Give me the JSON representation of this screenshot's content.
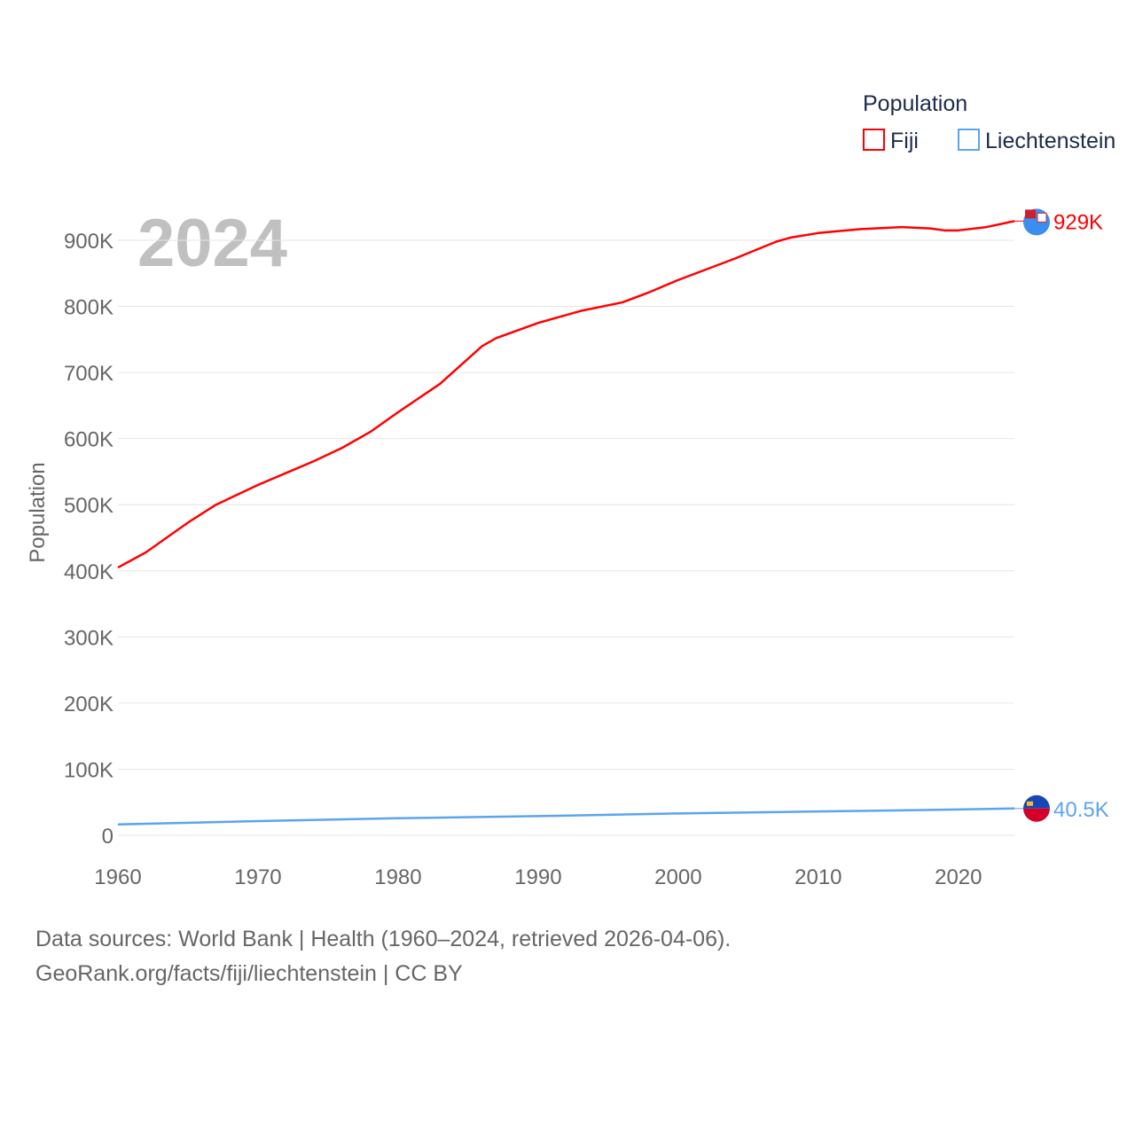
{
  "chart_data": {
    "type": "line",
    "title": "",
    "ylabel": "Population",
    "xlabel": "",
    "year_watermark": "2024",
    "legend": {
      "title": "Population",
      "position": "top-right"
    },
    "xlim": [
      1960,
      2024
    ],
    "ylim": [
      0,
      900000
    ],
    "x_ticks": [
      1960,
      1970,
      1980,
      1990,
      2000,
      2010,
      2020
    ],
    "y_ticks": [
      {
        "v": 0,
        "label": "0"
      },
      {
        "v": 100000,
        "label": "100K"
      },
      {
        "v": 200000,
        "label": "200K"
      },
      {
        "v": 300000,
        "label": "300K"
      },
      {
        "v": 400000,
        "label": "400K"
      },
      {
        "v": 500000,
        "label": "500K"
      },
      {
        "v": 600000,
        "label": "600K"
      },
      {
        "v": 700000,
        "label": "700K"
      },
      {
        "v": 800000,
        "label": "800K"
      },
      {
        "v": 900000,
        "label": "900K"
      }
    ],
    "grid": true,
    "series": [
      {
        "name": "Fiji",
        "color": "#ff0000",
        "end_label": "929K",
        "x": [
          1960,
          1962,
          1965,
          1967,
          1970,
          1972,
          1974,
          1976,
          1978,
          1980,
          1983,
          1986,
          1987,
          1990,
          1993,
          1996,
          1998,
          2000,
          2004,
          2007,
          2008,
          2010,
          2013,
          2016,
          2018,
          2019,
          2020,
          2022,
          2024
        ],
        "values": [
          405000,
          428000,
          473000,
          500000,
          530000,
          548000,
          566000,
          586000,
          610000,
          640000,
          683000,
          740000,
          752000,
          775000,
          793000,
          806000,
          822000,
          840000,
          872000,
          898000,
          904000,
          911000,
          917000,
          920000,
          918000,
          915000,
          915000,
          920000,
          929000
        ]
      },
      {
        "name": "Liechtenstein",
        "color": "#5ba4ef",
        "end_label": "40.5K",
        "x": [
          1960,
          1970,
          1980,
          1990,
          2000,
          2010,
          2020,
          2024
        ],
        "values": [
          16400,
          21500,
          25800,
          29000,
          33000,
          36000,
          39000,
          40500
        ]
      }
    ]
  },
  "footer": {
    "line1": "Data sources: World Bank | Health (1960–2024, retrieved 2026-04-06).",
    "line2": "GeoRank.org/facts/fiji/liechtenstein | CC BY"
  }
}
